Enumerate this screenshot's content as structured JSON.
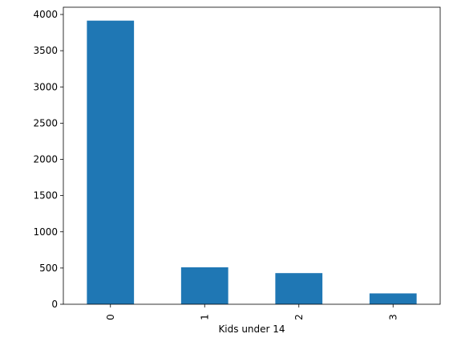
{
  "chart_data": {
    "type": "bar",
    "title": "",
    "xlabel": "Kids under 14",
    "ylabel": "",
    "categories": [
      "0",
      "1",
      "2",
      "3"
    ],
    "values": [
      3915,
      510,
      430,
      150
    ],
    "ylim": [
      0,
      4100
    ],
    "yticks": [
      0,
      500,
      1000,
      1500,
      2000,
      2500,
      3000,
      3500,
      4000
    ],
    "ytick_labels": [
      "0",
      "500",
      "1000",
      "1500",
      "2000",
      "2500",
      "3000",
      "3500",
      "4000"
    ],
    "grid": false,
    "legend": "none",
    "bar_color": "#1f77b4",
    "axis_color": "#000000",
    "xtick_rotation": "vertical"
  }
}
